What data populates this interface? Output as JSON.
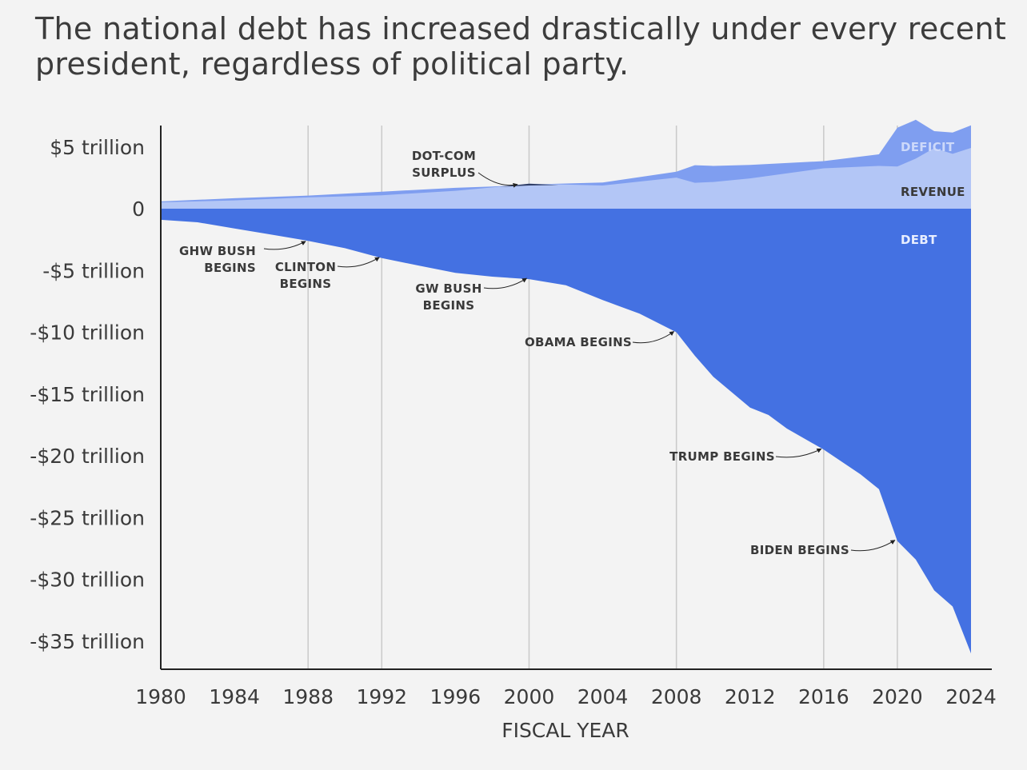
{
  "title": {
    "line1": "The national debt has increased drastically under every recent",
    "line2": "president, regardless of political party."
  },
  "chart_data": {
    "type": "area",
    "xlabel": "FISCAL YEAR",
    "ylabel": "",
    "xlim": [
      1980,
      2024
    ],
    "ylim": [
      -37,
      6.5
    ],
    "x_ticks": [
      1980,
      1984,
      1988,
      1992,
      1996,
      2000,
      2004,
      2008,
      2012,
      2016,
      2020,
      2024
    ],
    "y_ticks": [
      {
        "value": 5,
        "label": "$5 trillion"
      },
      {
        "value": 0,
        "label": "0"
      },
      {
        "value": -5,
        "label": "-$5 trillion"
      },
      {
        "value": -10,
        "label": "-$10 trillion"
      },
      {
        "value": -15,
        "label": "-$15 trillion"
      },
      {
        "value": -20,
        "label": "-$20 trillion"
      },
      {
        "value": -25,
        "label": "-$25 trillion"
      },
      {
        "value": -30,
        "label": "-$30 trillion"
      },
      {
        "value": -35,
        "label": "-$35 trillion"
      }
    ],
    "gridlines_x": [
      1988,
      1992,
      2000,
      2008,
      2016,
      2020
    ],
    "series": [
      {
        "name": "DEFICIT",
        "color": "#7f9ef0",
        "x": [
          1980,
          1984,
          1988,
          1992,
          1996,
          1998,
          2000,
          2001,
          2004,
          2008,
          2009,
          2010,
          2012,
          2016,
          2019,
          2020,
          2021,
          2022,
          2023,
          2024
        ],
        "values": [
          0.59,
          0.85,
          1.06,
          1.38,
          1.69,
          1.79,
          1.95,
          2.0,
          2.12,
          2.99,
          3.52,
          3.46,
          3.54,
          3.85,
          4.4,
          6.55,
          7.2,
          6.28,
          6.16,
          6.75
        ]
      },
      {
        "name": "REVENUE",
        "color": "#b3c6f6",
        "x": [
          1980,
          1984,
          1988,
          1992,
          1996,
          1998,
          2000,
          2001,
          2004,
          2008,
          2009,
          2010,
          2012,
          2016,
          2019,
          2020,
          2021,
          2022,
          2023,
          2024
        ],
        "values": [
          0.52,
          0.67,
          0.91,
          1.09,
          1.45,
          1.72,
          2.03,
          1.99,
          1.88,
          2.52,
          2.1,
          2.16,
          2.45,
          3.27,
          3.46,
          3.42,
          4.05,
          4.9,
          4.44,
          4.92
        ]
      },
      {
        "name": "DEBT",
        "color": "#4471e2",
        "x": [
          1980,
          1982,
          1984,
          1986,
          1988,
          1990,
          1992,
          1994,
          1996,
          1998,
          2000,
          2002,
          2004,
          2006,
          2008,
          2009,
          2010,
          2012,
          2013,
          2014,
          2016,
          2018,
          2019,
          2020,
          2021,
          2022,
          2023,
          2024
        ],
        "values": [
          -0.9,
          -1.1,
          -1.6,
          -2.1,
          -2.6,
          -3.2,
          -4.0,
          -4.6,
          -5.2,
          -5.5,
          -5.7,
          -6.2,
          -7.4,
          -8.5,
          -10.0,
          -11.9,
          -13.6,
          -16.1,
          -16.7,
          -17.8,
          -19.5,
          -21.5,
          -22.7,
          -26.9,
          -28.4,
          -30.9,
          -32.2,
          -36.0
        ]
      }
    ],
    "annotations": [
      {
        "lines": [
          "DOT-COM",
          "SURPLUS"
        ],
        "x": 1999.5,
        "y": 1.9
      },
      {
        "lines": [
          "GHW BUSH",
          "BEGINS"
        ],
        "x": 1988,
        "y": -2.7
      },
      {
        "lines": [
          "CLINTON",
          "BEGINS"
        ],
        "x": 1992,
        "y": -4.0
      },
      {
        "lines": [
          "GW BUSH",
          "BEGINS"
        ],
        "x": 2000,
        "y": -5.7
      },
      {
        "lines": [
          "OBAMA BEGINS"
        ],
        "x": 2008,
        "y": -10.0
      },
      {
        "lines": [
          "TRUMP BEGINS"
        ],
        "x": 2016,
        "y": -19.5
      },
      {
        "lines": [
          "BIDEN BEGINS"
        ],
        "x": 2020,
        "y": -26.9
      }
    ]
  }
}
